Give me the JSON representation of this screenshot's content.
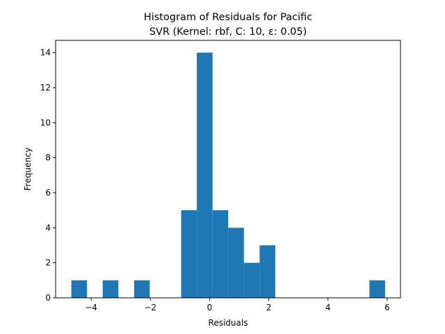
{
  "chart_data": {
    "type": "bar",
    "subtype": "histogram",
    "title_line1": "Histogram of Residuals for Pacific",
    "title_line2": "SVR (Kernel: rbf, C: 10, ε: 0.05)",
    "xlabel": "Residuals",
    "ylabel": "Frequency",
    "xlim": [
      -5.2,
      6.45
    ],
    "ylim": [
      0,
      14.7
    ],
    "xticks": [
      -4,
      -2,
      0,
      2,
      4,
      6
    ],
    "xtick_labels": [
      "−4",
      "−2",
      "0",
      "2",
      "4",
      "6"
    ],
    "yticks": [
      0,
      2,
      4,
      6,
      8,
      10,
      12,
      14
    ],
    "ytick_labels": [
      "0",
      "2",
      "4",
      "6",
      "8",
      "10",
      "12",
      "14"
    ],
    "bin_edges": [
      -4.67,
      -4.14,
      -3.61,
      -3.08,
      -2.55,
      -2.02,
      -1.49,
      -0.96,
      -0.43,
      0.1,
      0.63,
      1.16,
      1.69,
      2.22,
      2.75,
      3.28,
      3.81,
      4.34,
      4.87,
      5.4,
      5.93
    ],
    "counts": [
      1,
      0,
      1,
      0,
      1,
      0,
      0,
      5,
      14,
      5,
      4,
      2,
      3,
      0,
      0,
      0,
      0,
      0,
      0,
      1
    ],
    "bar_color": "#1f77b4",
    "grid": false,
    "legend": "none"
  }
}
